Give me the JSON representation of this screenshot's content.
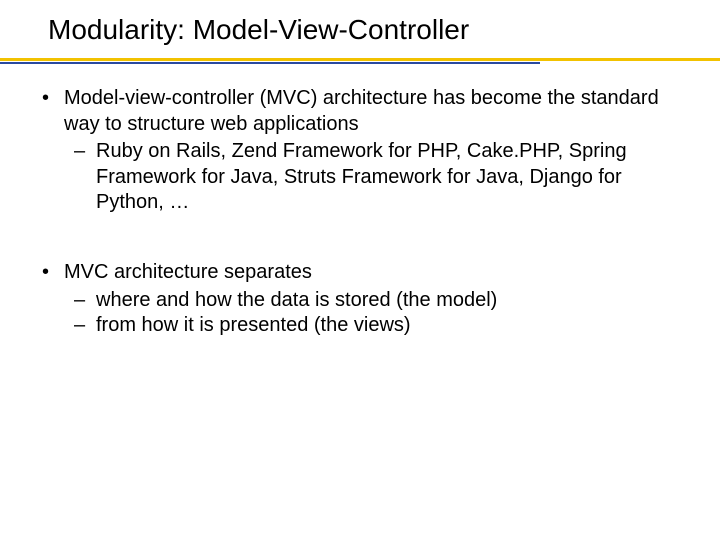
{
  "slide": {
    "title": "Modularity: Model-View-Controller",
    "rule_color_top": "#f2c200",
    "rule_color_bottom": "#2a4aa0",
    "title_fontsize": 28,
    "body_fontsize": 20,
    "text_color": "#000000",
    "background_color": "#ffffff",
    "bullets": [
      {
        "text": "Model-view-controller (MVC) architecture has become the standard way to structure web applications",
        "sub": [
          "Ruby on Rails, Zend Framework for PHP, Cake.PHP, Spring Framework for Java, Struts Framework for Java, Django for Python, …"
        ]
      },
      {
        "text": "MVC architecture separates",
        "sub": [
          "where and how the data is stored (the model)",
          " from how it is presented (the views)"
        ]
      }
    ]
  }
}
